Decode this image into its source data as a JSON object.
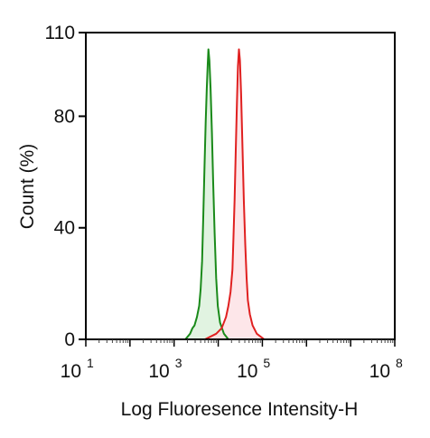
{
  "chart_data": {
    "type": "area",
    "title": "",
    "xlabel": "Log Fluoresence Intensity-H",
    "ylabel": "Count  (%)",
    "x_scale": "log",
    "xlim": [
      10,
      100000000
    ],
    "ylim": [
      0,
      110
    ],
    "grid": false,
    "legend": "none",
    "x_ticks": [
      {
        "value": 10,
        "base": "10",
        "exp": "1"
      },
      {
        "value": 1000,
        "base": "10",
        "exp": "3"
      },
      {
        "value": 100000,
        "base": "10",
        "exp": "5"
      },
      {
        "value": 100000000,
        "base": "10",
        "exp": "8"
      }
    ],
    "y_ticks": [
      {
        "value": 0,
        "label": "0"
      },
      {
        "value": 40,
        "label": "40"
      },
      {
        "value": 80,
        "label": "80"
      },
      {
        "value": 110,
        "label": "110"
      }
    ],
    "series": [
      {
        "line_color": "#1a8a1a",
        "fill_color": "#d9f0d9",
        "points": [
          [
            1800,
            0
          ],
          [
            2300,
            2
          ],
          [
            2600,
            4
          ],
          [
            2900,
            5
          ],
          [
            3300,
            8
          ],
          [
            3700,
            12
          ],
          [
            4000,
            18
          ],
          [
            4300,
            28
          ],
          [
            4600,
            45
          ],
          [
            4900,
            62
          ],
          [
            5200,
            78
          ],
          [
            5500,
            90
          ],
          [
            5800,
            99
          ],
          [
            6000,
            104
          ],
          [
            6300,
            100
          ],
          [
            6700,
            90
          ],
          [
            7200,
            74
          ],
          [
            7700,
            56
          ],
          [
            8300,
            38
          ],
          [
            9000,
            22
          ],
          [
            9800,
            12
          ],
          [
            11000,
            6
          ],
          [
            13500,
            2
          ],
          [
            17000,
            0
          ]
        ]
      },
      {
        "line_color": "#e02020",
        "fill_color": "#fde0e3",
        "points": [
          [
            5000,
            0
          ],
          [
            9000,
            2
          ],
          [
            12000,
            4
          ],
          [
            15000,
            8
          ],
          [
            17000,
            12
          ],
          [
            19000,
            17
          ],
          [
            21000,
            25
          ],
          [
            22000,
            35
          ],
          [
            23500,
            50
          ],
          [
            25000,
            68
          ],
          [
            26500,
            85
          ],
          [
            28000,
            98
          ],
          [
            29500,
            104
          ],
          [
            31000,
            100
          ],
          [
            33000,
            88
          ],
          [
            35500,
            68
          ],
          [
            38000,
            50
          ],
          [
            41000,
            34
          ],
          [
            44000,
            22
          ],
          [
            47000,
            14
          ],
          [
            52000,
            9
          ],
          [
            60000,
            5
          ],
          [
            75000,
            2
          ],
          [
            110000,
            0
          ]
        ]
      }
    ]
  }
}
